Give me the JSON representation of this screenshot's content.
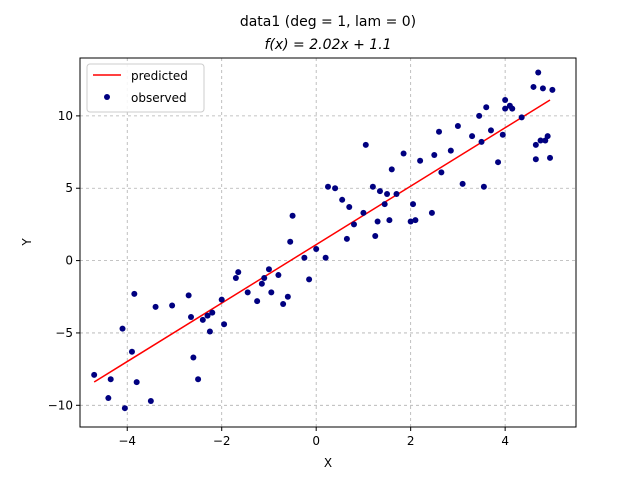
{
  "chart_data": {
    "type": "scatter",
    "title": "data1  (deg = 1, lam = 0)",
    "subtitle": "f(x) = 2.02x + 1.1",
    "xlabel": "X",
    "ylabel": "Y",
    "xlim": [
      -5.0,
      5.5
    ],
    "ylim": [
      -11.5,
      14.0
    ],
    "xticks": [
      -4,
      -2,
      0,
      2,
      4
    ],
    "xtick_labels": [
      "−4",
      "−2",
      "0",
      "2",
      "4"
    ],
    "yticks": [
      -10,
      -5,
      0,
      5,
      10
    ],
    "ytick_labels": [
      "−10",
      "−5",
      "0",
      "5",
      "10"
    ],
    "grid": true,
    "legend": {
      "position": "top-left",
      "entries": [
        "predicted",
        "observed"
      ]
    },
    "colors": {
      "predicted": "#ff0000",
      "observed": "#000080"
    },
    "series": [
      {
        "name": "predicted",
        "type": "line",
        "x": [
          -4.7,
          4.95
        ],
        "y": [
          -8.39,
          11.1
        ]
      },
      {
        "name": "observed",
        "type": "scatter",
        "points": [
          [
            -4.7,
            -7.9
          ],
          [
            -4.4,
            -9.5
          ],
          [
            -4.35,
            -8.2
          ],
          [
            -4.1,
            -4.7
          ],
          [
            -4.05,
            -10.2
          ],
          [
            -3.9,
            -6.3
          ],
          [
            -3.85,
            -2.3
          ],
          [
            -3.8,
            -8.4
          ],
          [
            -3.5,
            -9.7
          ],
          [
            -3.4,
            -3.2
          ],
          [
            -3.05,
            -3.1
          ],
          [
            -2.7,
            -2.4
          ],
          [
            -2.65,
            -3.9
          ],
          [
            -2.6,
            -6.7
          ],
          [
            -2.5,
            -8.2
          ],
          [
            -2.4,
            -4.1
          ],
          [
            -2.3,
            -3.8
          ],
          [
            -2.25,
            -4.9
          ],
          [
            -2.2,
            -3.6
          ],
          [
            -2.0,
            -2.7
          ],
          [
            -1.95,
            -4.4
          ],
          [
            -1.7,
            -1.2
          ],
          [
            -1.65,
            -0.8
          ],
          [
            -1.45,
            -2.2
          ],
          [
            -1.25,
            -2.8
          ],
          [
            -1.15,
            -1.6
          ],
          [
            -1.1,
            -1.2
          ],
          [
            -1.0,
            -0.6
          ],
          [
            -0.95,
            -2.2
          ],
          [
            -0.8,
            -1.0
          ],
          [
            -0.7,
            -3.0
          ],
          [
            -0.6,
            -2.5
          ],
          [
            -0.55,
            1.3
          ],
          [
            -0.5,
            3.1
          ],
          [
            -0.25,
            0.2
          ],
          [
            -0.15,
            -1.3
          ],
          [
            0.0,
            0.8
          ],
          [
            0.2,
            0.2
          ],
          [
            0.25,
            5.1
          ],
          [
            0.4,
            5.0
          ],
          [
            0.55,
            4.2
          ],
          [
            0.65,
            1.5
          ],
          [
            0.7,
            3.7
          ],
          [
            0.8,
            2.5
          ],
          [
            1.0,
            3.3
          ],
          [
            1.05,
            8.0
          ],
          [
            1.2,
            5.1
          ],
          [
            1.25,
            1.7
          ],
          [
            1.3,
            2.7
          ],
          [
            1.35,
            4.8
          ],
          [
            1.45,
            3.9
          ],
          [
            1.5,
            4.6
          ],
          [
            1.55,
            2.8
          ],
          [
            1.6,
            6.3
          ],
          [
            1.7,
            4.6
          ],
          [
            1.85,
            7.4
          ],
          [
            2.0,
            2.7
          ],
          [
            2.05,
            3.9
          ],
          [
            2.1,
            2.8
          ],
          [
            2.2,
            6.9
          ],
          [
            2.45,
            3.3
          ],
          [
            2.5,
            7.3
          ],
          [
            2.6,
            8.9
          ],
          [
            2.65,
            6.1
          ],
          [
            2.85,
            7.6
          ],
          [
            3.0,
            9.3
          ],
          [
            3.1,
            5.3
          ],
          [
            3.3,
            8.6
          ],
          [
            3.45,
            10.0
          ],
          [
            3.5,
            8.2
          ],
          [
            3.55,
            5.1
          ],
          [
            3.6,
            10.6
          ],
          [
            3.7,
            9.0
          ],
          [
            3.85,
            6.8
          ],
          [
            3.95,
            8.7
          ],
          [
            4.0,
            10.5
          ],
          [
            4.0,
            11.1
          ],
          [
            4.1,
            10.7
          ],
          [
            4.15,
            10.5
          ],
          [
            4.35,
            9.9
          ],
          [
            4.6,
            12.0
          ],
          [
            4.65,
            8.0
          ],
          [
            4.65,
            7.0
          ],
          [
            4.7,
            13.0
          ],
          [
            4.75,
            8.3
          ],
          [
            4.8,
            11.9
          ],
          [
            4.85,
            8.3
          ],
          [
            4.9,
            8.6
          ],
          [
            4.95,
            7.1
          ],
          [
            5.0,
            11.8
          ]
        ]
      }
    ]
  }
}
